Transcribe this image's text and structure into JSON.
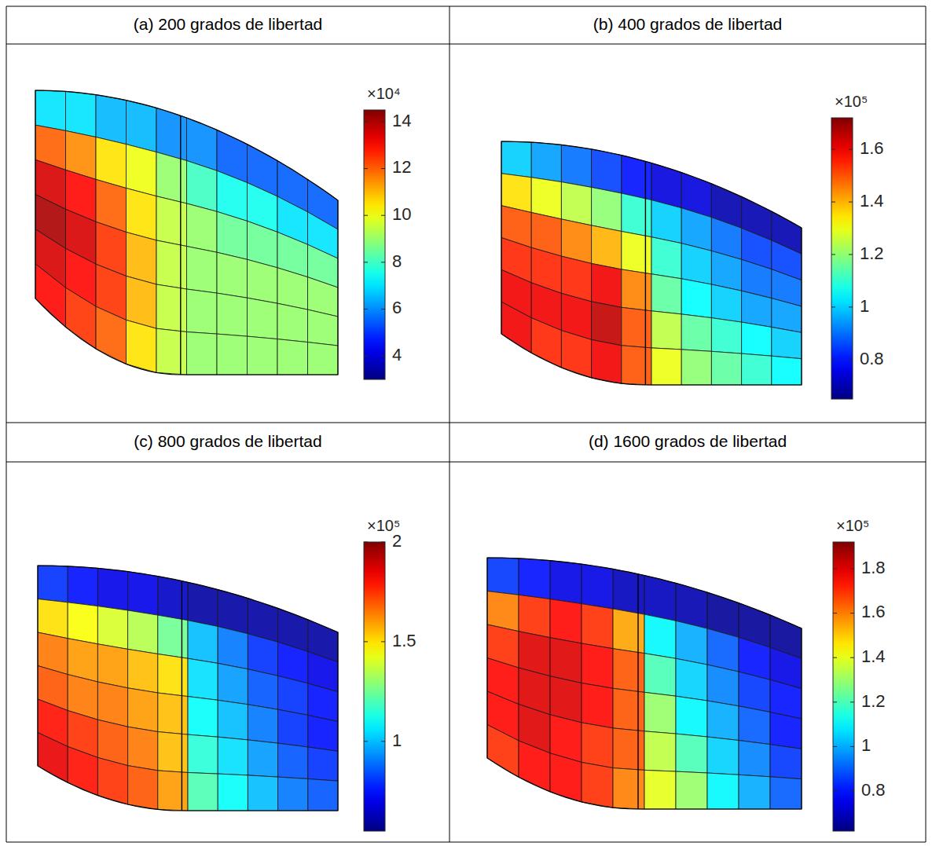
{
  "chart_data": [
    {
      "type": "heatmap",
      "title": "(a) 200 grados de libertad",
      "colorbar_multiplier": "×10⁴",
      "colorbar_range": [
        3,
        14.5
      ],
      "colorbar_ticks": [
        4,
        6,
        8,
        10,
        12,
        14
      ],
      "cells": [
        [
          7,
          7,
          6.5,
          6.5,
          6,
          6,
          5.5,
          5.5,
          5.5,
          5.5
        ],
        [
          12,
          11.5,
          10.5,
          10,
          9,
          8,
          7.5,
          7.5,
          7,
          7
        ],
        [
          13.5,
          13,
          12,
          10.5,
          9.5,
          9,
          8.5,
          8.5,
          8.5,
          8.5
        ],
        [
          14,
          13.5,
          12.5,
          11,
          9.5,
          9,
          9,
          9,
          9,
          9
        ],
        [
          13.5,
          13,
          12.5,
          11,
          9.5,
          9,
          9,
          9,
          9,
          9
        ],
        [
          13,
          12.5,
          12,
          10.5,
          9.5,
          9,
          9,
          9,
          9,
          9
        ]
      ]
    },
    {
      "type": "heatmap",
      "title": "(b) 400 grados de libertad",
      "colorbar_multiplier": "×10⁵",
      "colorbar_range": [
        0.65,
        1.72
      ],
      "colorbar_ticks": [
        0.8,
        1,
        1.2,
        1.4,
        1.6
      ],
      "cells": [
        [
          1.0,
          0.95,
          0.9,
          0.85,
          0.8,
          0.75,
          0.75,
          0.7,
          0.7,
          0.7
        ],
        [
          1.35,
          1.3,
          1.25,
          1.2,
          1.1,
          1.0,
          0.95,
          0.9,
          0.85,
          0.85
        ],
        [
          1.5,
          1.5,
          1.45,
          1.4,
          1.3,
          1.1,
          1.0,
          0.95,
          0.9,
          0.9
        ],
        [
          1.55,
          1.55,
          1.55,
          1.6,
          1.45,
          1.15,
          1.05,
          1.0,
          0.95,
          0.95
        ],
        [
          1.6,
          1.6,
          1.6,
          1.65,
          1.5,
          1.25,
          1.15,
          1.1,
          1.05,
          1.0
        ],
        [
          1.6,
          1.55,
          1.55,
          1.6,
          1.5,
          1.3,
          1.2,
          1.15,
          1.1,
          1.05
        ]
      ]
    },
    {
      "type": "heatmap",
      "title": "(c) 800 grados de libertad",
      "colorbar_multiplier": "×10⁵",
      "colorbar_range": [
        0.55,
        2.0
      ],
      "colorbar_ticks": [
        1,
        1.5,
        2
      ],
      "cells": [
        [
          0.8,
          0.75,
          0.7,
          0.7,
          0.65,
          0.6,
          0.6,
          0.6,
          0.6,
          0.6
        ],
        [
          1.5,
          1.45,
          1.4,
          1.35,
          1.25,
          1.0,
          0.9,
          0.8,
          0.75,
          0.7
        ],
        [
          1.65,
          1.6,
          1.6,
          1.55,
          1.5,
          1.05,
          0.95,
          0.85,
          0.8,
          0.75
        ],
        [
          1.7,
          1.65,
          1.65,
          1.6,
          1.55,
          1.1,
          1.0,
          0.9,
          0.8,
          0.75
        ],
        [
          1.8,
          1.75,
          1.7,
          1.65,
          1.55,
          1.15,
          1.05,
          0.95,
          0.85,
          0.8
        ],
        [
          1.85,
          1.8,
          1.75,
          1.7,
          1.6,
          1.2,
          1.1,
          1.0,
          0.9,
          0.85
        ]
      ]
    },
    {
      "type": "heatmap",
      "title": "(d) 1600 grados de libertad",
      "colorbar_multiplier": "×10⁵",
      "colorbar_range": [
        0.62,
        1.92
      ],
      "colorbar_ticks": [
        0.8,
        1,
        1.2,
        1.4,
        1.6,
        1.8
      ],
      "cells": [
        [
          0.85,
          0.8,
          0.75,
          0.75,
          0.7,
          0.7,
          0.68,
          0.65,
          0.65,
          0.65
        ],
        [
          1.6,
          1.7,
          1.75,
          1.7,
          1.55,
          1.1,
          1.0,
          0.9,
          0.8,
          0.75
        ],
        [
          1.7,
          1.8,
          1.8,
          1.75,
          1.65,
          1.2,
          1.05,
          0.95,
          0.85,
          0.8
        ],
        [
          1.75,
          1.8,
          1.8,
          1.75,
          1.65,
          1.3,
          1.1,
          1.0,
          0.9,
          0.8
        ],
        [
          1.75,
          1.8,
          1.75,
          1.7,
          1.65,
          1.35,
          1.2,
          1.05,
          0.95,
          0.85
        ],
        [
          1.7,
          1.75,
          1.75,
          1.7,
          1.6,
          1.4,
          1.3,
          1.1,
          1.0,
          0.9
        ]
      ]
    }
  ]
}
